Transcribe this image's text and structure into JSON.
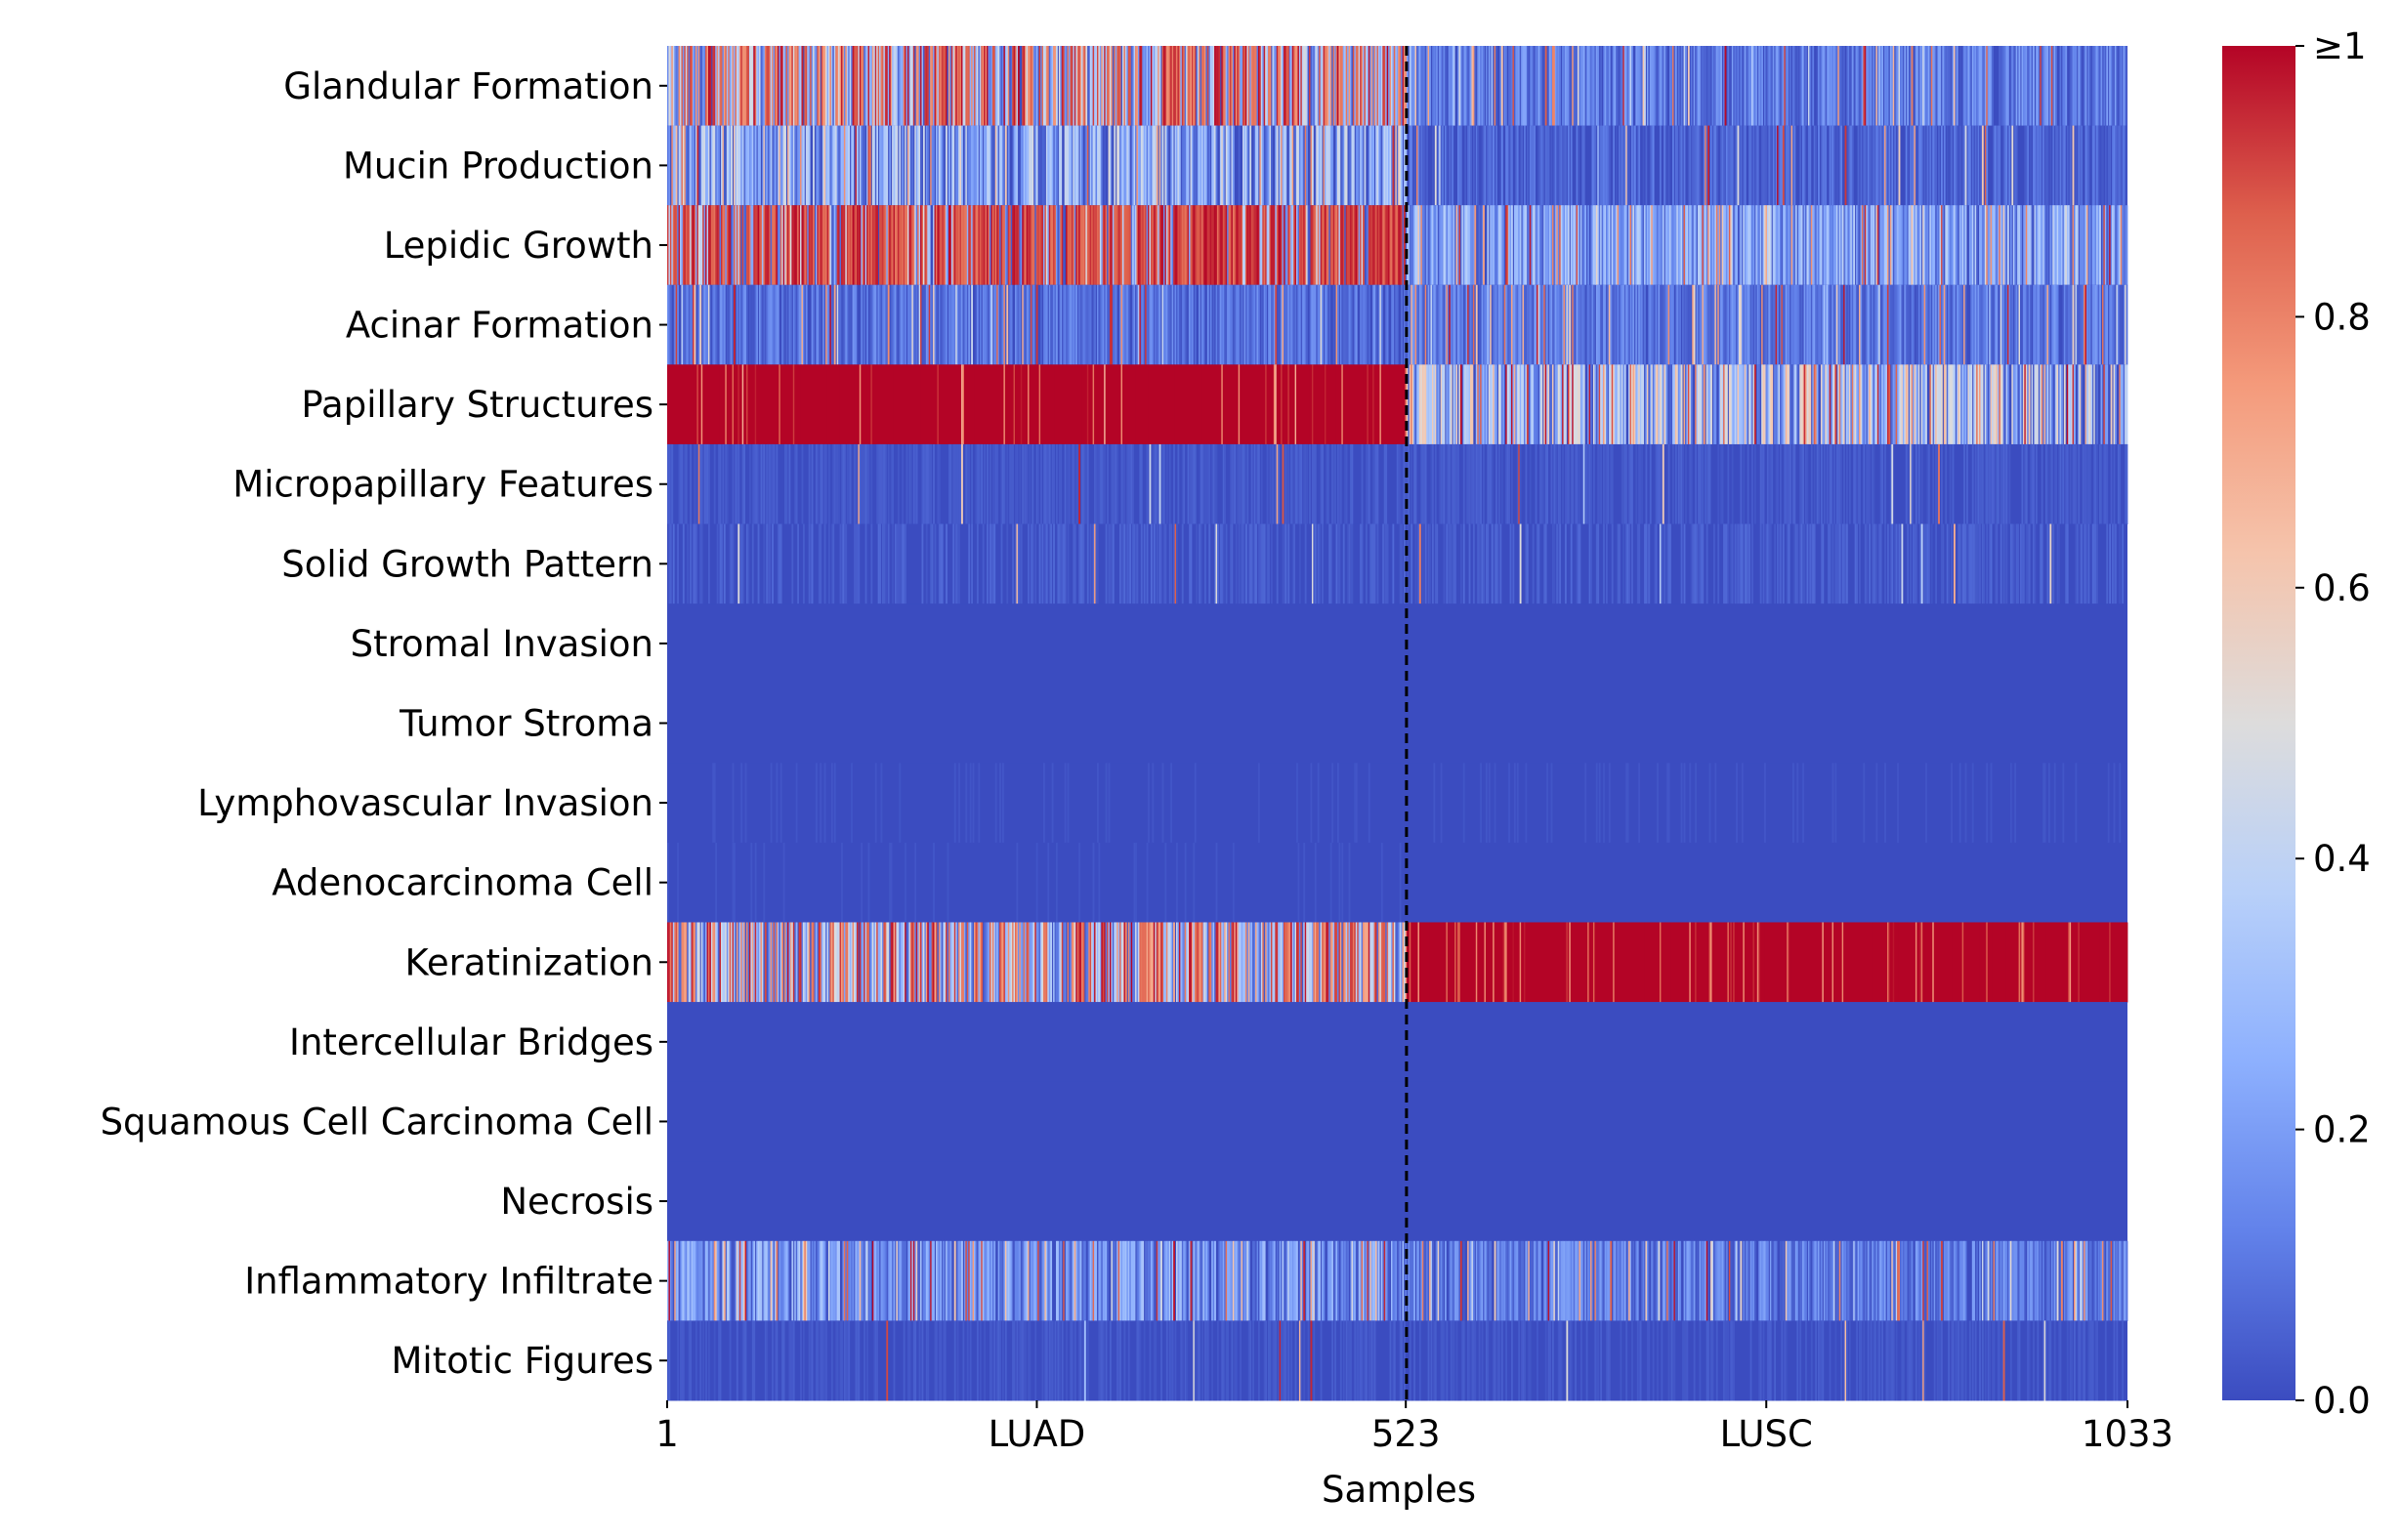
{
  "chart_data": {
    "type": "heatmap",
    "title": "",
    "xlabel": "Samples",
    "ylabel": "",
    "x_range": [
      1,
      1033
    ],
    "x_ticks": [
      {
        "label": "1",
        "at": 1
      },
      {
        "label": "LUAD",
        "at": 262
      },
      {
        "label": "523",
        "at": 523
      },
      {
        "label": "LUSC",
        "at": 778
      },
      {
        "label": "1033",
        "at": 1033
      }
    ],
    "groups": [
      {
        "name": "LUAD",
        "start": 1,
        "end": 523
      },
      {
        "name": "LUSC",
        "start": 524,
        "end": 1033
      }
    ],
    "divider_at": 523,
    "colorbar": {
      "min": 0.0,
      "max": 1.0,
      "tick_labels": [
        "0.0",
        "0.2",
        "0.4",
        "0.6",
        "0.8",
        "≥1"
      ],
      "tick_values": [
        0.0,
        0.2,
        0.4,
        0.6,
        0.8,
        1.0
      ],
      "colormap": "coolwarm",
      "stops": [
        "#3b4cc0",
        "#6282ea",
        "#8db0fe",
        "#b8d0f9",
        "#dddcdc",
        "#f5c4ac",
        "#f49a7b",
        "#de604d",
        "#b40426"
      ]
    },
    "rows": [
      {
        "name": "Glandular Formation",
        "luad_mean": 0.55,
        "luad_spread": 0.45,
        "lusc_mean": 0.08,
        "lusc_spread": 0.12
      },
      {
        "name": "Mucin Production",
        "luad_mean": 0.12,
        "luad_spread": 0.3,
        "lusc_mean": 0.03,
        "lusc_spread": 0.08
      },
      {
        "name": "Lepidic Growth",
        "luad_mean": 0.75,
        "luad_spread": 0.3,
        "lusc_mean": 0.15,
        "lusc_spread": 0.2
      },
      {
        "name": "Acinar Formation",
        "luad_mean": 0.06,
        "luad_spread": 0.1,
        "lusc_mean": 0.08,
        "lusc_spread": 0.1
      },
      {
        "name": "Papillary Structures",
        "luad_mean": 0.97,
        "luad_spread": 0.05,
        "lusc_mean": 0.2,
        "lusc_spread": 0.35
      },
      {
        "name": "Micropapillary Features",
        "luad_mean": 0.02,
        "luad_spread": 0.03,
        "lusc_mean": 0.02,
        "lusc_spread": 0.03
      },
      {
        "name": "Solid Growth Pattern",
        "luad_mean": 0.01,
        "luad_spread": 0.05,
        "lusc_mean": 0.01,
        "lusc_spread": 0.05
      },
      {
        "name": "Stromal Invasion",
        "luad_mean": 0.0,
        "luad_spread": 0.01,
        "lusc_mean": 0.0,
        "lusc_spread": 0.01
      },
      {
        "name": "Tumor Stroma",
        "luad_mean": 0.0,
        "luad_spread": 0.01,
        "lusc_mean": 0.0,
        "lusc_spread": 0.01
      },
      {
        "name": "Lymphovascular Invasion",
        "luad_mean": 0.0,
        "luad_spread": 0.02,
        "lusc_mean": 0.0,
        "lusc_spread": 0.02
      },
      {
        "name": "Adenocarcinoma Cell",
        "luad_mean": 0.0,
        "luad_spread": 0.02,
        "lusc_mean": 0.0,
        "lusc_spread": 0.01
      },
      {
        "name": "Keratinization",
        "luad_mean": 0.45,
        "luad_spread": 0.5,
        "lusc_mean": 0.98,
        "lusc_spread": 0.04
      },
      {
        "name": "Intercellular Bridges",
        "luad_mean": 0.0,
        "luad_spread": 0.01,
        "lusc_mean": 0.0,
        "lusc_spread": 0.01
      },
      {
        "name": "Squamous Cell Carcinoma Cell",
        "luad_mean": 0.0,
        "luad_spread": 0.01,
        "lusc_mean": 0.0,
        "lusc_spread": 0.01
      },
      {
        "name": "Necrosis",
        "luad_mean": 0.0,
        "luad_spread": 0.01,
        "lusc_mean": 0.0,
        "lusc_spread": 0.01
      },
      {
        "name": "Inflammatory Infiltrate",
        "luad_mean": 0.12,
        "luad_spread": 0.18,
        "lusc_mean": 0.08,
        "lusc_spread": 0.12
      },
      {
        "name": "Mitotic Figures",
        "luad_mean": 0.01,
        "luad_spread": 0.03,
        "lusc_mean": 0.01,
        "lusc_spread": 0.03
      }
    ]
  }
}
